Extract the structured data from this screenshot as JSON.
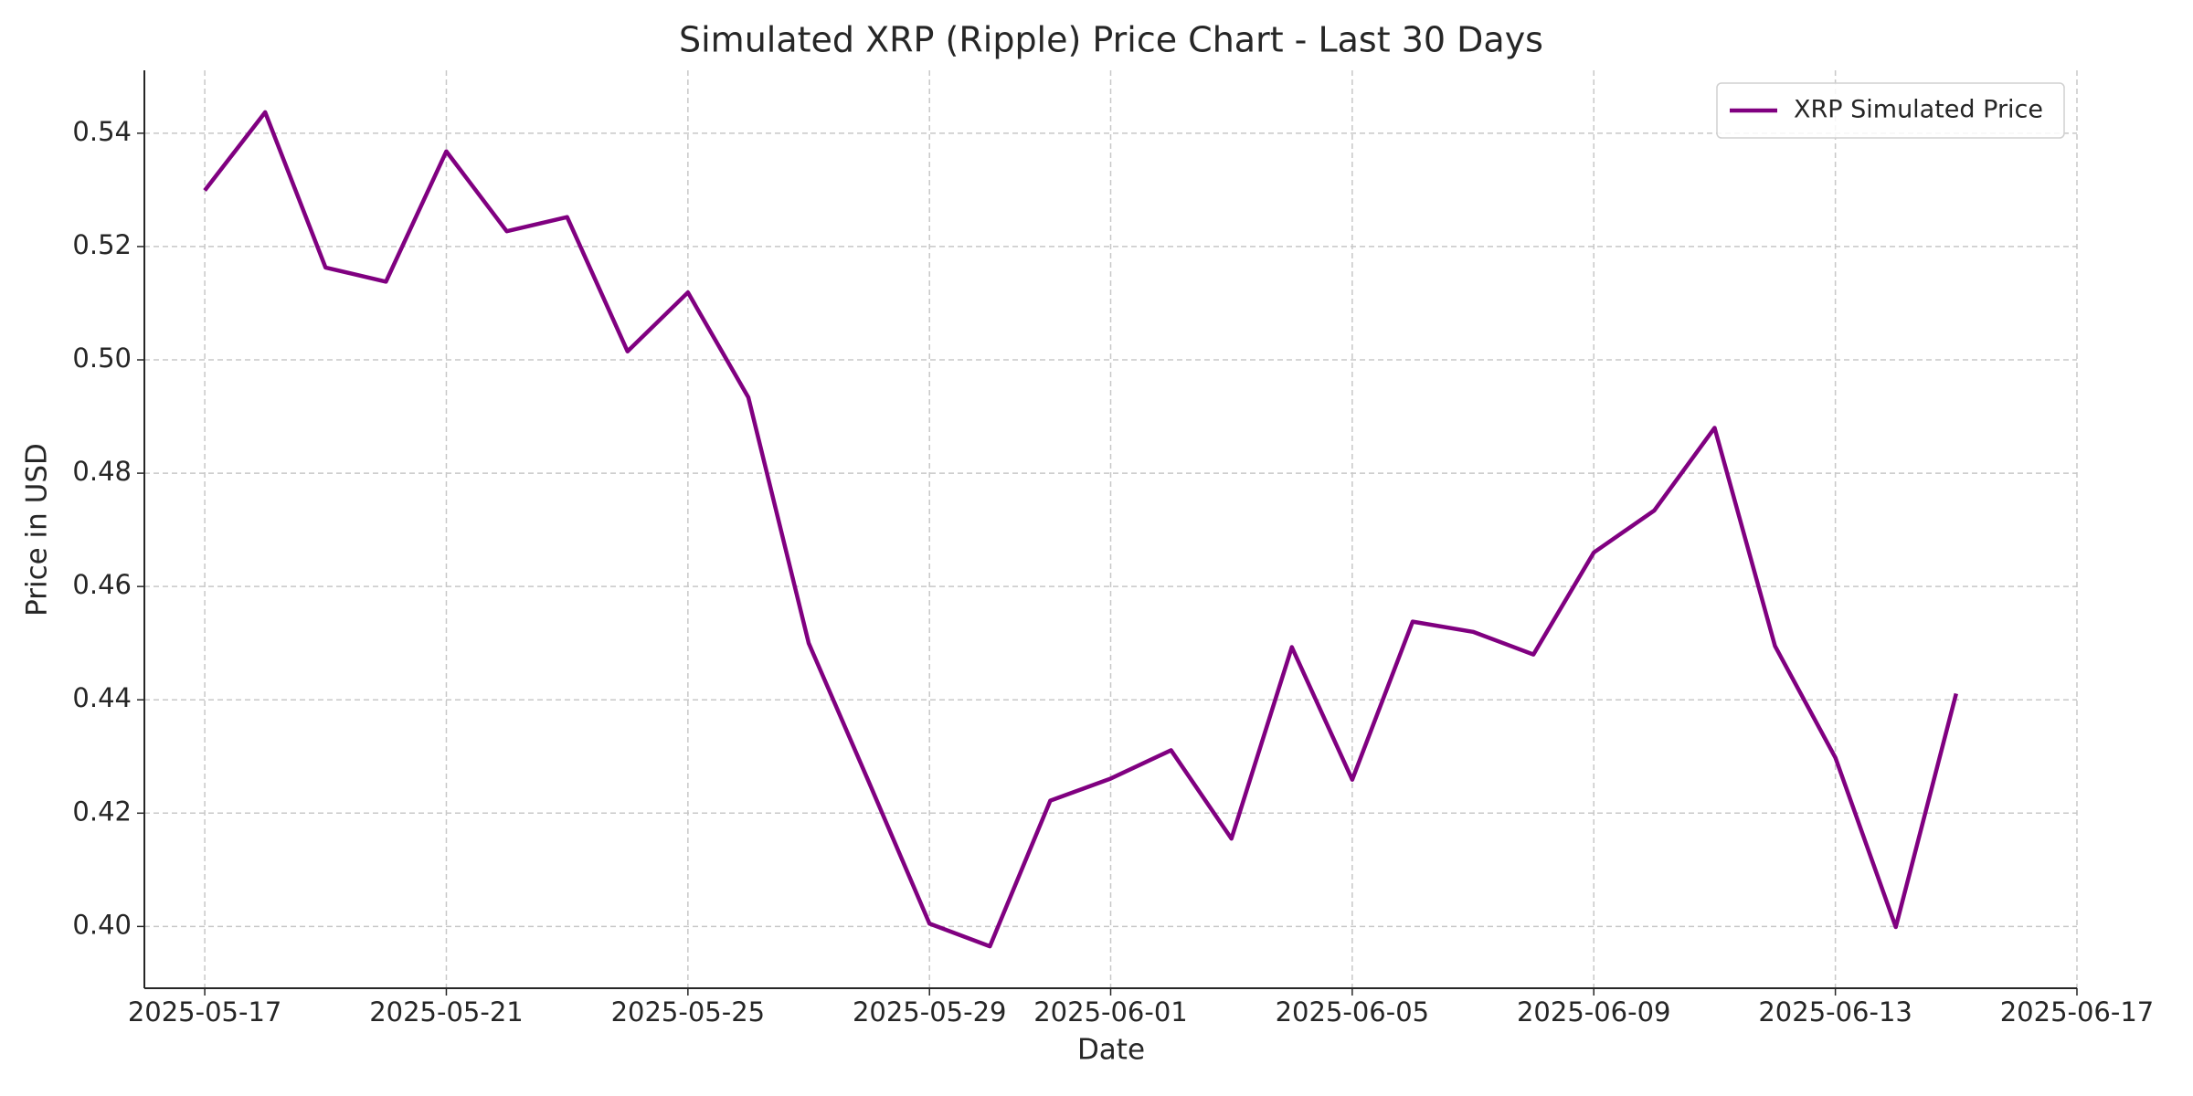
{
  "chart_data": {
    "type": "line",
    "title": "Simulated XRP (Ripple) Price Chart - Last 30 Days",
    "x_label": "Date",
    "y_label": "Price in USD",
    "x": [
      "2025-05-17",
      "2025-05-18",
      "2025-05-19",
      "2025-05-20",
      "2025-05-21",
      "2025-05-22",
      "2025-05-23",
      "2025-05-24",
      "2025-05-25",
      "2025-05-26",
      "2025-05-27",
      "2025-05-28",
      "2025-05-29",
      "2025-05-30",
      "2025-05-31",
      "2025-06-01",
      "2025-06-02",
      "2025-06-03",
      "2025-06-04",
      "2025-06-05",
      "2025-06-06",
      "2025-06-07",
      "2025-06-08",
      "2025-06-09",
      "2025-06-10",
      "2025-06-11",
      "2025-06-12",
      "2025-06-13",
      "2025-06-14",
      "2025-06-15"
    ],
    "series": [
      {
        "name": "XRP Simulated Price",
        "color": "#800080",
        "values": [
          0.5299,
          0.5437,
          0.5163,
          0.5138,
          0.5368,
          0.5227,
          0.5252,
          0.5015,
          0.5119,
          0.4934,
          0.45,
          0.4254,
          0.4005,
          0.3965,
          0.4222,
          0.4261,
          0.4311,
          0.4155,
          0.4493,
          0.4259,
          0.4538,
          0.452,
          0.448,
          0.466,
          0.4734,
          0.488,
          0.4495,
          0.4298,
          0.3999,
          0.4411
        ]
      }
    ],
    "xlim": [
      "2025-05-16",
      "2025-06-17"
    ],
    "xticks": [
      "2025-05-17",
      "2025-05-21",
      "2025-05-25",
      "2025-05-29",
      "2025-06-01",
      "2025-06-05",
      "2025-06-09",
      "2025-06-13",
      "2025-06-17"
    ],
    "ylim": [
      0.3891,
      0.5511
    ],
    "yticks": [
      {
        "value": 0.4,
        "label": "0.40"
      },
      0.42,
      0.44,
      0.46,
      0.48,
      {
        "value": 0.5,
        "label": "0.50"
      },
      0.52,
      0.54
    ],
    "grid": true,
    "legend": "upper right"
  }
}
